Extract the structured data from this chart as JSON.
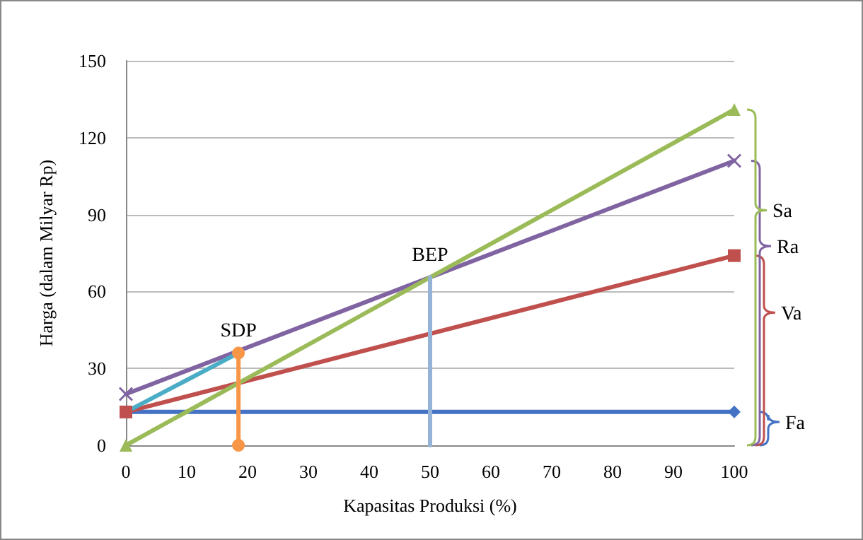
{
  "chart_data": {
    "type": "line",
    "xlabel": "Kapasitas Produksi (%)",
    "ylabel": "Harga (dalam Milyar Rp)",
    "xlim": [
      0,
      100
    ],
    "xticks": [
      0,
      10,
      20,
      30,
      40,
      50,
      60,
      70,
      80,
      90,
      100
    ],
    "ylim": [
      0,
      150
    ],
    "yticks": [
      0,
      30,
      60,
      90,
      120,
      150
    ],
    "grid": "y",
    "legend": "right",
    "annotations": [
      {
        "text": "SDP",
        "x": 18.5,
        "y": 36
      },
      {
        "text": "BEP",
        "x": 50,
        "y": 65.5
      }
    ],
    "series": [
      {
        "name": "Fa",
        "color": "#4472c4",
        "x": [
          0,
          100
        ],
        "values": [
          13,
          13
        ],
        "marker": "diamond"
      },
      {
        "name": "Va",
        "color": "#c0504d",
        "x": [
          0,
          100
        ],
        "values": [
          13,
          74
        ],
        "marker": "square"
      },
      {
        "name": "Ra",
        "color": "#8064a2",
        "x": [
          0,
          100
        ],
        "values": [
          20,
          111
        ],
        "marker": "cross"
      },
      {
        "name": "Sa",
        "color": "#9bbb59",
        "x": [
          0,
          100
        ],
        "values": [
          0,
          131
        ],
        "marker": "triangle"
      },
      {
        "color": "#4bacc6",
        "x": [
          0,
          18.5
        ],
        "values": [
          13,
          36
        ],
        "marker": "none"
      },
      {
        "color": "#f79646",
        "x": [
          18.5,
          18.5
        ],
        "values": [
          0,
          36
        ],
        "marker": "circle"
      },
      {
        "color": "#95b3d7",
        "x": [
          50,
          50
        ],
        "values": [
          0,
          65.5
        ],
        "marker": "none"
      }
    ]
  }
}
